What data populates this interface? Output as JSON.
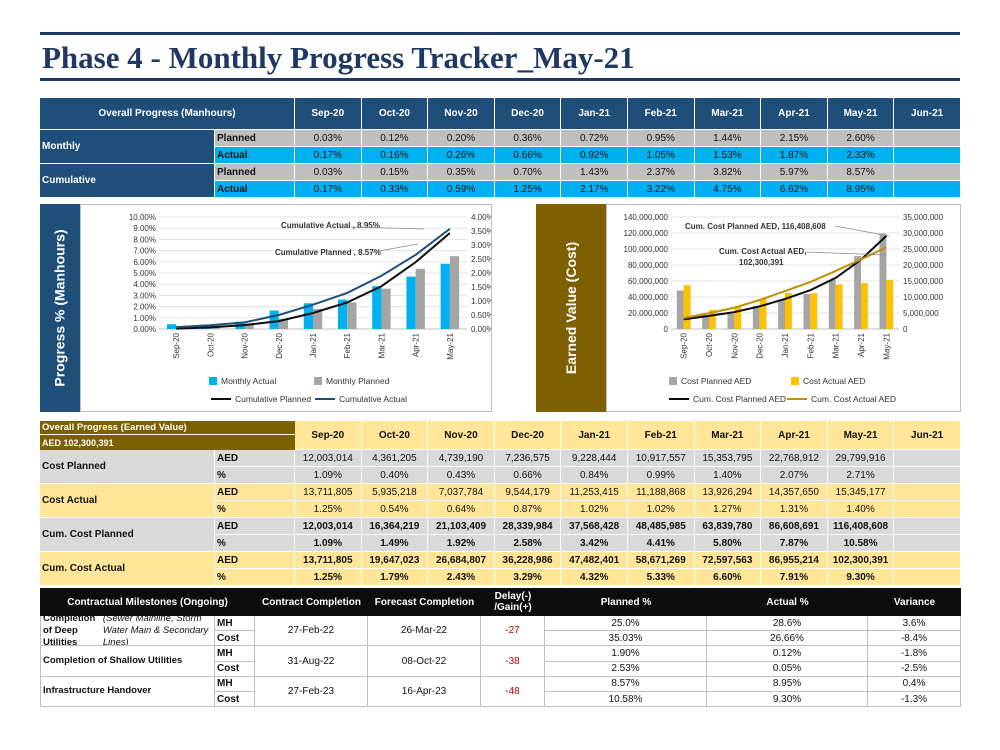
{
  "title": "Phase 4 - Monthly Progress Tracker_May-21",
  "months": [
    "Sep-20",
    "Oct-20",
    "Nov-20",
    "Dec-20",
    "Jan-21",
    "Feb-21",
    "Mar-21",
    "Apr-21",
    "May-21",
    "Jun-21"
  ],
  "colors": {
    "navy": "#1f4e79",
    "cyan": "#00b0f0",
    "gray": "#a5a5a5",
    "gold": "#ffc000",
    "olive": "#7f6000",
    "dark_gold": "#bf9000"
  },
  "progress_table": {
    "header": "Overall Progress (Manhours)",
    "monthly_label": "Monthly",
    "cumulative_label": "Cumulative",
    "planned_label": "Planned",
    "actual_label": "Actual",
    "monthly_planned": [
      "0.03%",
      "0.12%",
      "0.20%",
      "0.36%",
      "0.72%",
      "0.95%",
      "1.44%",
      "2.15%",
      "2.60%",
      ""
    ],
    "monthly_actual": [
      "0.17%",
      "0.16%",
      "0.26%",
      "0.66%",
      "0.92%",
      "1.05%",
      "1.53%",
      "1.87%",
      "2.33%",
      ""
    ],
    "cumulative_planned": [
      "0.03%",
      "0.15%",
      "0.35%",
      "0.70%",
      "1.43%",
      "2.37%",
      "3.82%",
      "5.97%",
      "8.57%",
      ""
    ],
    "cumulative_actual": [
      "0.17%",
      "0.33%",
      "0.59%",
      "1.25%",
      "2.17%",
      "3.22%",
      "4.75%",
      "6.62%",
      "8.95%",
      ""
    ]
  },
  "chart_data": [
    {
      "type": "bar",
      "side_label": "Progress % (Manhours)",
      "categories": [
        "Sep-20",
        "Oct-20",
        "Nov-20",
        "Dec-20",
        "Jan-21",
        "Feb-21",
        "Mar-21",
        "Apr-21",
        "May-21"
      ],
      "left_axis_ticks": [
        "10.00%",
        "9.00%",
        "8.00%",
        "7.00%",
        "6.00%",
        "5.00%",
        "4.00%",
        "3.00%",
        "2.00%",
        "1.00%",
        "0.00%"
      ],
      "right_axis_ticks": [
        "4.00%",
        "3.50%",
        "3.00%",
        "2.50%",
        "2.00%",
        "1.50%",
        "1.00%",
        "0.50%",
        "0.00%"
      ],
      "left_ylim": [
        0,
        10
      ],
      "right_ylim": [
        0,
        4
      ],
      "series": [
        {
          "name": "Monthly  Actual",
          "kind": "bar",
          "axis": "right",
          "values": [
            0.17,
            0.16,
            0.26,
            0.66,
            0.92,
            1.05,
            1.53,
            1.87,
            2.33
          ]
        },
        {
          "name": "Monthly  Planned",
          "kind": "bar",
          "axis": "right",
          "values": [
            0.03,
            0.12,
            0.2,
            0.36,
            0.72,
            0.95,
            1.44,
            2.15,
            2.6
          ]
        },
        {
          "name": "Cumulative Planned",
          "kind": "line",
          "axis": "left",
          "values": [
            0.03,
            0.15,
            0.35,
            0.7,
            1.43,
            2.37,
            3.82,
            5.97,
            8.57
          ]
        },
        {
          "name": "Cumulative Actual",
          "kind": "line",
          "axis": "left",
          "values": [
            0.17,
            0.33,
            0.59,
            1.25,
            2.17,
            3.22,
            4.75,
            6.62,
            8.95
          ]
        }
      ],
      "annotations": [
        "Cumulative Actual , 8.95%",
        "Cumulative Planned , 8.57%"
      ]
    },
    {
      "type": "bar",
      "side_label": "Earned Value (Cost)",
      "categories": [
        "Sep-20",
        "Oct-20",
        "Nov-20",
        "Dec-20",
        "Jan-21",
        "Feb-21",
        "Mar-21",
        "Apr-21",
        "May-21"
      ],
      "left_axis_ticks": [
        "140,000,000",
        "120,000,000",
        "100,000,000",
        "80,000,000",
        "60,000,000",
        "40,000,000",
        "20,000,000",
        "0"
      ],
      "right_axis_ticks": [
        "35,000,000",
        "30,000,000",
        "25,000,000",
        "20,000,000",
        "15,000,000",
        "10,000,000",
        "5,000,000",
        "0"
      ],
      "left_ylim": [
        0,
        140000000
      ],
      "right_ylim": [
        0,
        35000000
      ],
      "series": [
        {
          "name": "Cost Planned  AED",
          "kind": "bar",
          "axis": "right",
          "values": [
            12003014,
            4361205,
            4739190,
            7236575,
            9228444,
            10917557,
            15353795,
            22768912,
            29799916
          ]
        },
        {
          "name": "Cost Actual  AED",
          "kind": "bar",
          "axis": "right",
          "values": [
            13711805,
            5935218,
            7037784,
            9544179,
            11253415,
            11188868,
            13926294,
            14357650,
            15345177
          ]
        },
        {
          "name": "Cum. Cost Planned AED",
          "kind": "line",
          "axis": "left",
          "values": [
            12003014,
            16364219,
            21103409,
            28339984,
            37568428,
            48485985,
            63839780,
            86608691,
            116408608
          ]
        },
        {
          "name": "Cum. Cost Actual  AED",
          "kind": "line",
          "axis": "left",
          "values": [
            13711805,
            19647023,
            26684807,
            36228986,
            47482401,
            58671269,
            72597563,
            86955214,
            102300391
          ]
        }
      ],
      "annotations": [
        "Cum. Cost Planned AED, 116,408,608",
        "Cum. Cost Actual  AED,",
        "102,300,391"
      ]
    }
  ],
  "cost_table": {
    "header": "Overall Progress (Earned Value)",
    "subheader": "AED 102,300,391",
    "aed": "AED",
    "pct": "%",
    "rows": [
      {
        "label": "Cost Planned",
        "aed": [
          "12,003,014",
          "4,361,205",
          "4,739,190",
          "7,236,575",
          "9,228,444",
          "10,917,557",
          "15,353,795",
          "22,768,912",
          "29,799,916",
          ""
        ],
        "pct": [
          "1.09%",
          "0.40%",
          "0.43%",
          "0.66%",
          "0.84%",
          "0.99%",
          "1.40%",
          "2.07%",
          "2.71%",
          ""
        ]
      },
      {
        "label": "Cost Actual",
        "aed": [
          "13,711,805",
          "5,935,218",
          "7,037,784",
          "9,544,179",
          "11,253,415",
          "11,188,868",
          "13,926,294",
          "14,357,650",
          "15,345,177",
          ""
        ],
        "pct": [
          "1.25%",
          "0.54%",
          "0.64%",
          "0.87%",
          "1.02%",
          "1.02%",
          "1.27%",
          "1.31%",
          "1.40%",
          ""
        ]
      },
      {
        "label": "Cum. Cost Planned",
        "aed": [
          "12,003,014",
          "16,364,219",
          "21,103,409",
          "28,339,984",
          "37,568,428",
          "48,485,985",
          "63,839,780",
          "86,608,691",
          "116,408,608",
          ""
        ],
        "pct": [
          "1.09%",
          "1.49%",
          "1.92%",
          "2.58%",
          "3.42%",
          "4.41%",
          "5.80%",
          "7.87%",
          "10.58%",
          ""
        ]
      },
      {
        "label": "Cum. Cost Actual",
        "aed": [
          "13,711,805",
          "19,647,023",
          "26,684,807",
          "36,228,986",
          "47,482,401",
          "58,671,269",
          "72,597,563",
          "86,955,214",
          "102,300,391",
          ""
        ],
        "pct": [
          "1.25%",
          "1.79%",
          "2.43%",
          "3.29%",
          "4.32%",
          "5.33%",
          "6.60%",
          "7.91%",
          "9.30%",
          ""
        ]
      }
    ]
  },
  "milestones": {
    "headers": [
      "Contractual Milestones (Ongoing)",
      "Contract Completion",
      "Forecast Completion",
      "Delay(-) /Gain(+)",
      "Planned %",
      "Actual %",
      "Variance"
    ],
    "items": [
      {
        "name": "Completion of Deep Utilities",
        "name_italic": " (Sewer Mainline, Storm Water Main & Secondary Lines)",
        "contract": "27-Feb-22",
        "forecast": "26-Mar-22",
        "delay": "-27",
        "mh": {
          "label": "MH",
          "planned": "25.0%",
          "actual": "28.6%",
          "variance": "3.6%"
        },
        "cost": {
          "label": "Cost",
          "planned": "35.03%",
          "actual": "26.66%",
          "variance": "-8.4%"
        }
      },
      {
        "name": "Completion of Shallow Utilities",
        "name_italic": "",
        "contract": "31-Aug-22",
        "forecast": "08-Oct-22",
        "delay": "-38",
        "mh": {
          "label": "MH",
          "planned": "1.90%",
          "actual": "0.12%",
          "variance": "-1.8%"
        },
        "cost": {
          "label": "Cost",
          "planned": "2.53%",
          "actual": "0.05%",
          "variance": "-2.5%"
        }
      },
      {
        "name": "Infrastructure Handover",
        "name_italic": "",
        "contract": "27-Feb-23",
        "forecast": "16-Apr-23",
        "delay": "-48",
        "mh": {
          "label": "MH",
          "planned": "8.57%",
          "actual": "8.95%",
          "variance": "0.4%"
        },
        "cost": {
          "label": "Cost",
          "planned": "10.58%",
          "actual": "9.30%",
          "variance": "-1.3%"
        }
      }
    ]
  }
}
